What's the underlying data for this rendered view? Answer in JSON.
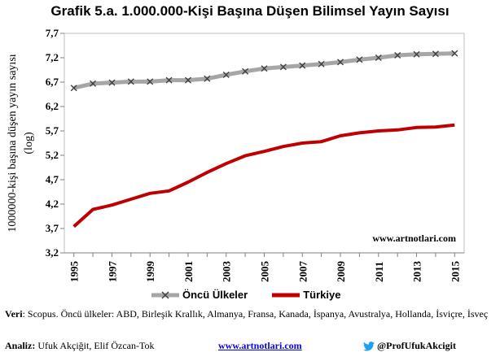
{
  "title": "Grafik 5.a. 1.000.000-Kişi Başına Düşen Bilimsel Yayın Sayısı",
  "watermark": "www.artnotlari.com",
  "source": {
    "label": "Veri",
    "text": ": Scopus. Öncü ülkeler: ABD, Birleşik Krallık, Almanya, Fransa, Kanada, İspanya, Avustralya, Hollanda, İsviçre, İsveç"
  },
  "footer": {
    "analysis_label": "Analiz:",
    "analysis_text": " Ufuk Akçiğit, Elif Özcan-Tok",
    "site": "www.artnotlari.com",
    "twitter": "@ProfUfukAkcigit"
  },
  "colors": {
    "leaders": "#a6a6a6",
    "turkey": "#c00000",
    "twitter": "#1da1f2"
  },
  "chart_data": {
    "type": "line",
    "ylabel_line1": "1000000-kişi başına düşen yayın sayısı",
    "ylabel_line2": "(log)",
    "ylim": [
      3.2,
      7.7
    ],
    "yticks": [
      3.2,
      3.7,
      4.2,
      4.7,
      5.2,
      5.7,
      6.2,
      6.7,
      7.2,
      7.7
    ],
    "ytick_labels": [
      "3,2",
      "3,7",
      "4,2",
      "4,7",
      "5,2",
      "5,7",
      "6,2",
      "6,7",
      "7,2",
      "7,7"
    ],
    "x": [
      1995,
      1996,
      1997,
      1998,
      1999,
      2000,
      2001,
      2002,
      2003,
      2004,
      2005,
      2006,
      2007,
      2008,
      2009,
      2010,
      2011,
      2012,
      2013,
      2014,
      2015
    ],
    "xtick_labels": [
      "1995",
      "1997",
      "1999",
      "2001",
      "2003",
      "2005",
      "2007",
      "2009",
      "2011",
      "2013",
      "2015"
    ],
    "series": [
      {
        "name": "Öncü Ülkeler",
        "marker": "x",
        "values": [
          6.58,
          6.67,
          6.69,
          6.71,
          6.71,
          6.74,
          6.74,
          6.77,
          6.85,
          6.92,
          6.98,
          7.01,
          7.04,
          7.07,
          7.11,
          7.16,
          7.2,
          7.25,
          7.27,
          7.28,
          7.29
        ]
      },
      {
        "name": "Türkiye",
        "marker": "none",
        "values": [
          3.74,
          4.09,
          4.18,
          4.3,
          4.42,
          4.47,
          4.65,
          4.85,
          5.03,
          5.19,
          5.28,
          5.38,
          5.45,
          5.48,
          5.6,
          5.66,
          5.7,
          5.72,
          5.77,
          5.78,
          5.82
        ]
      }
    ]
  }
}
